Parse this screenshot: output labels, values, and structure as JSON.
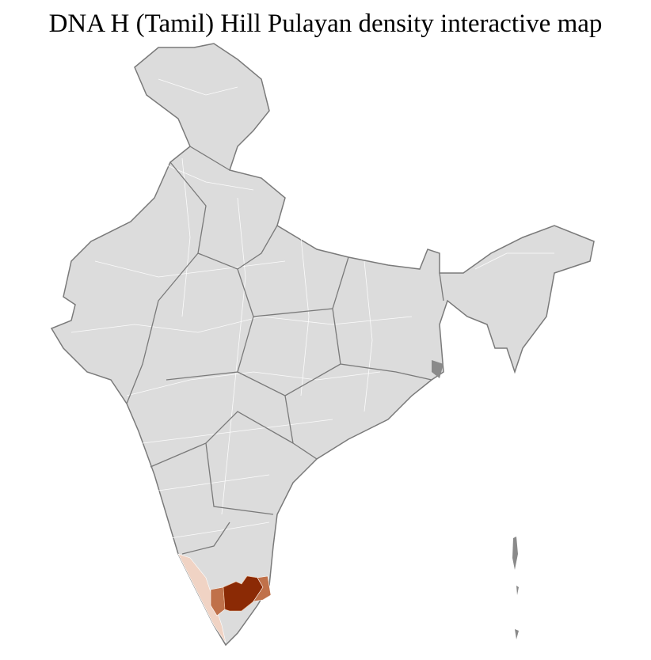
{
  "title": "DNA H (Tamil) Hill Pulayan density interactive map",
  "map": {
    "base_fill": "#dcdcdc",
    "district_border": "#ffffff",
    "state_border": "#7a7a7a",
    "density_colors": {
      "low": "#f0d3c4",
      "medium": "#c0714a",
      "high": "#8b2a05"
    },
    "highlighted_regions": [
      {
        "name": "Kerala districts",
        "level": "low"
      },
      {
        "name": "Tamil Nadu western districts",
        "level": "medium"
      },
      {
        "name": "Tamil Nadu central districts",
        "level": "high"
      },
      {
        "name": "Tamil Nadu eastern districts",
        "level": "medium"
      }
    ]
  }
}
